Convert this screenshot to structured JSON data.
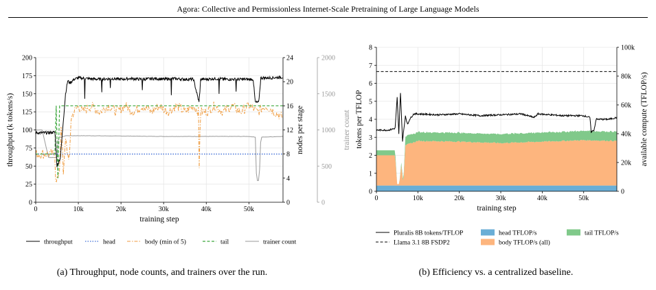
{
  "header": {
    "title": "Agora: Collective and Permissionless Internet-Scale Pretraining of Large Language Models"
  },
  "captions": {
    "a": "(a) Throughput, node counts, and trainers over the run.",
    "b": "(b) Efficiency vs. a centralized baseline."
  },
  "colors": {
    "throughput": "#000000",
    "head": "#3b6bd6",
    "body": "#ef9a3c",
    "tail": "#3aa63a",
    "trainer": "#999999",
    "head_area": "#6aaed6",
    "body_area": "#fdb57e",
    "tail_area": "#80c98a",
    "baseline": "#000000"
  },
  "chart_data": [
    {
      "type": "line",
      "x_range": [
        0,
        58000
      ],
      "xlabel": "training step",
      "x_ticks": [
        "0",
        "10k",
        "20k",
        "30k",
        "40k",
        "50k"
      ],
      "y_left": {
        "label": "throughput (k tokens/s)",
        "range": [
          0,
          200
        ],
        "ticks": [
          "0",
          "25",
          "50",
          "75",
          "100",
          "125",
          "150",
          "175",
          "200"
        ]
      },
      "y_right1": {
        "label": "nodes per stage",
        "range": [
          0,
          24
        ],
        "ticks": [
          "0",
          "4",
          "8",
          "12",
          "16",
          "20",
          "24"
        ]
      },
      "y_right2": {
        "label": "trainer count",
        "range": [
          0,
          2000
        ],
        "ticks": [
          "0",
          "500",
          "1000",
          "1500",
          "2000"
        ]
      },
      "series": [
        {
          "name": "throughput",
          "axis": "left",
          "style": "solid",
          "points": [
            [
              0,
              96
            ],
            [
              1000,
              96
            ],
            [
              3000,
              96
            ],
            [
              4500,
              97
            ],
            [
              5000,
              50
            ],
            [
              5800,
              62
            ],
            [
              6300,
              100
            ],
            [
              7000,
              150
            ],
            [
              7500,
              168
            ],
            [
              8000,
              165
            ],
            [
              9000,
              170
            ],
            [
              10000,
              172
            ],
            [
              12000,
              171
            ],
            [
              15000,
              170
            ],
            [
              18000,
              171
            ],
            [
              20000,
              170
            ],
            [
              22000,
              171
            ],
            [
              25000,
              170
            ],
            [
              28000,
              171
            ],
            [
              30000,
              170
            ],
            [
              32000,
              171
            ],
            [
              35000,
              170
            ],
            [
              37000,
              170
            ],
            [
              38300,
              138
            ],
            [
              38700,
              170
            ],
            [
              40000,
              170
            ],
            [
              42000,
              171
            ],
            [
              45000,
              170
            ],
            [
              48000,
              170
            ],
            [
              51000,
              170
            ],
            [
              51500,
              138
            ],
            [
              52300,
              138
            ],
            [
              52800,
              172
            ],
            [
              55000,
              172
            ],
            [
              58000,
              173
            ]
          ],
          "dips": [
            [
              11500,
              143
            ],
            [
              15500,
              152
            ],
            [
              17500,
              158
            ],
            [
              25000,
              155
            ],
            [
              31800,
              148
            ],
            [
              43000,
              150
            ],
            [
              47000,
              153
            ]
          ]
        },
        {
          "name": "head",
          "axis": "right1",
          "style": "dotted",
          "points": [
            [
              0,
              8
            ],
            [
              58000,
              8
            ]
          ]
        },
        {
          "name": "body (min of 5)",
          "axis": "right1",
          "style": "dashdot",
          "points": [
            [
              0,
              8
            ],
            [
              4500,
              8
            ],
            [
              4600,
              4
            ],
            [
              5500,
              4
            ],
            [
              6000,
              14
            ],
            [
              6500,
              4
            ],
            [
              7000,
              11
            ],
            [
              7800,
              6
            ],
            [
              8300,
              14
            ],
            [
              9000,
              15
            ],
            [
              10000,
              16
            ],
            [
              11000,
              15
            ],
            [
              13000,
              16
            ],
            [
              15000,
              15
            ],
            [
              17000,
              16
            ],
            [
              19000,
              15
            ],
            [
              21000,
              16
            ],
            [
              23000,
              15
            ],
            [
              25000,
              16
            ],
            [
              27000,
              15
            ],
            [
              29000,
              16
            ],
            [
              31000,
              15
            ],
            [
              33000,
              16
            ],
            [
              35000,
              15
            ],
            [
              37000,
              16
            ],
            [
              38200,
              15
            ],
            [
              38300,
              4
            ],
            [
              38600,
              15
            ],
            [
              40000,
              15
            ],
            [
              42000,
              16
            ],
            [
              44000,
              15
            ],
            [
              46000,
              16
            ],
            [
              48000,
              15
            ],
            [
              50000,
              16
            ],
            [
              52000,
              15
            ],
            [
              54000,
              16
            ],
            [
              56000,
              15
            ],
            [
              58000,
              14
            ]
          ]
        },
        {
          "name": "tail",
          "axis": "right1",
          "style": "dashed",
          "points": [
            [
              0,
              8
            ],
            [
              4500,
              8
            ],
            [
              4800,
              16
            ],
            [
              5200,
              4
            ],
            [
              5600,
              16
            ],
            [
              58000,
              16
            ]
          ]
        },
        {
          "name": "trainer count",
          "axis": "right2",
          "style": "solid",
          "points": [
            [
              0,
              1000
            ],
            [
              1500,
              1000
            ],
            [
              3000,
              620
            ],
            [
              4500,
              620
            ],
            [
              5000,
              620
            ],
            [
              5300,
              900
            ],
            [
              6000,
              900
            ],
            [
              7000,
              920
            ],
            [
              12000,
              920
            ],
            [
              30000,
              910
            ],
            [
              50000,
              910
            ],
            [
              51500,
              900
            ],
            [
              51800,
              300
            ],
            [
              52400,
              300
            ],
            [
              52800,
              900
            ],
            [
              58000,
              910
            ]
          ]
        }
      ],
      "legend": [
        "throughput",
        "head",
        "body (min of 5)",
        "tail",
        "trainer count"
      ]
    },
    {
      "type": "area",
      "x_range": [
        0,
        58000
      ],
      "xlabel": "training step",
      "x_ticks": [
        "0",
        "10k",
        "20k",
        "30k",
        "40k",
        "50k"
      ],
      "y_left": {
        "label": "tokens per TFLOP",
        "range": [
          0,
          8
        ],
        "ticks": [
          "0",
          "1",
          "2",
          "3",
          "4",
          "5",
          "6",
          "7",
          "8"
        ]
      },
      "y_right": {
        "label": "available compute (TFLOP/s)",
        "range": [
          0,
          100000
        ],
        "ticks": [
          "0",
          "20k",
          "40k",
          "60k",
          "80k",
          "100k"
        ]
      },
      "series": [
        {
          "name": "Pluralis 8B tokens/TFLOP",
          "axis": "left",
          "style": "solid",
          "points": [
            [
              0,
              3.4
            ],
            [
              3000,
              3.4
            ],
            [
              4500,
              3.5
            ],
            [
              5000,
              5.2
            ],
            [
              5400,
              3.2
            ],
            [
              5800,
              5.5
            ],
            [
              6300,
              2.8
            ],
            [
              7000,
              4.2
            ],
            [
              7500,
              3.7
            ],
            [
              8000,
              4.0
            ],
            [
              9000,
              4.3
            ],
            [
              10000,
              4.3
            ],
            [
              15000,
              4.25
            ],
            [
              20000,
              4.3
            ],
            [
              25000,
              4.2
            ],
            [
              30000,
              4.25
            ],
            [
              35000,
              4.3
            ],
            [
              38000,
              4.1
            ],
            [
              39000,
              4.3
            ],
            [
              45000,
              4.2
            ],
            [
              50000,
              4.2
            ],
            [
              51500,
              4.1
            ],
            [
              51800,
              3.3
            ],
            [
              52500,
              3.4
            ],
            [
              53000,
              4.0
            ],
            [
              56000,
              4.0
            ],
            [
              58000,
              4.1
            ]
          ]
        },
        {
          "name": "Llama 3.1 8B FSDP2",
          "axis": "left",
          "style": "dashed",
          "points": [
            [
              0,
              6.65
            ],
            [
              58000,
              6.65
            ]
          ]
        },
        {
          "name": "head TFLOP/s",
          "axis": "right",
          "kind": "stack",
          "points": [
            [
              0,
              4000
            ],
            [
              58000,
              4000
            ]
          ]
        },
        {
          "name": "body TFLOP/s (all)",
          "axis": "right",
          "kind": "stack",
          "points": [
            [
              0,
              21000
            ],
            [
              4500,
              21000
            ],
            [
              5000,
              1000
            ],
            [
              5500,
              1000
            ],
            [
              6000,
              14000
            ],
            [
              6500,
              1000
            ],
            [
              7000,
              28000
            ],
            [
              10000,
              31000
            ],
            [
              20000,
              30500
            ],
            [
              30000,
              29500
            ],
            [
              40000,
              30500
            ],
            [
              50000,
              31500
            ],
            [
              58000,
              31000
            ]
          ]
        },
        {
          "name": "tail TFLOP/s",
          "axis": "right",
          "kind": "stack",
          "points": [
            [
              0,
              3500
            ],
            [
              4500,
              3500
            ],
            [
              5000,
              0
            ],
            [
              5500,
              0
            ],
            [
              6000,
              2000
            ],
            [
              6500,
              1000
            ],
            [
              7000,
              6000
            ],
            [
              58000,
              6500
            ]
          ]
        }
      ],
      "legend": [
        "Pluralis 8B tokens/TFLOP",
        "Llama 3.1 8B FSDP2",
        "head TFLOP/s",
        "body TFLOP/s (all)",
        "tail TFLOP/s"
      ]
    }
  ]
}
